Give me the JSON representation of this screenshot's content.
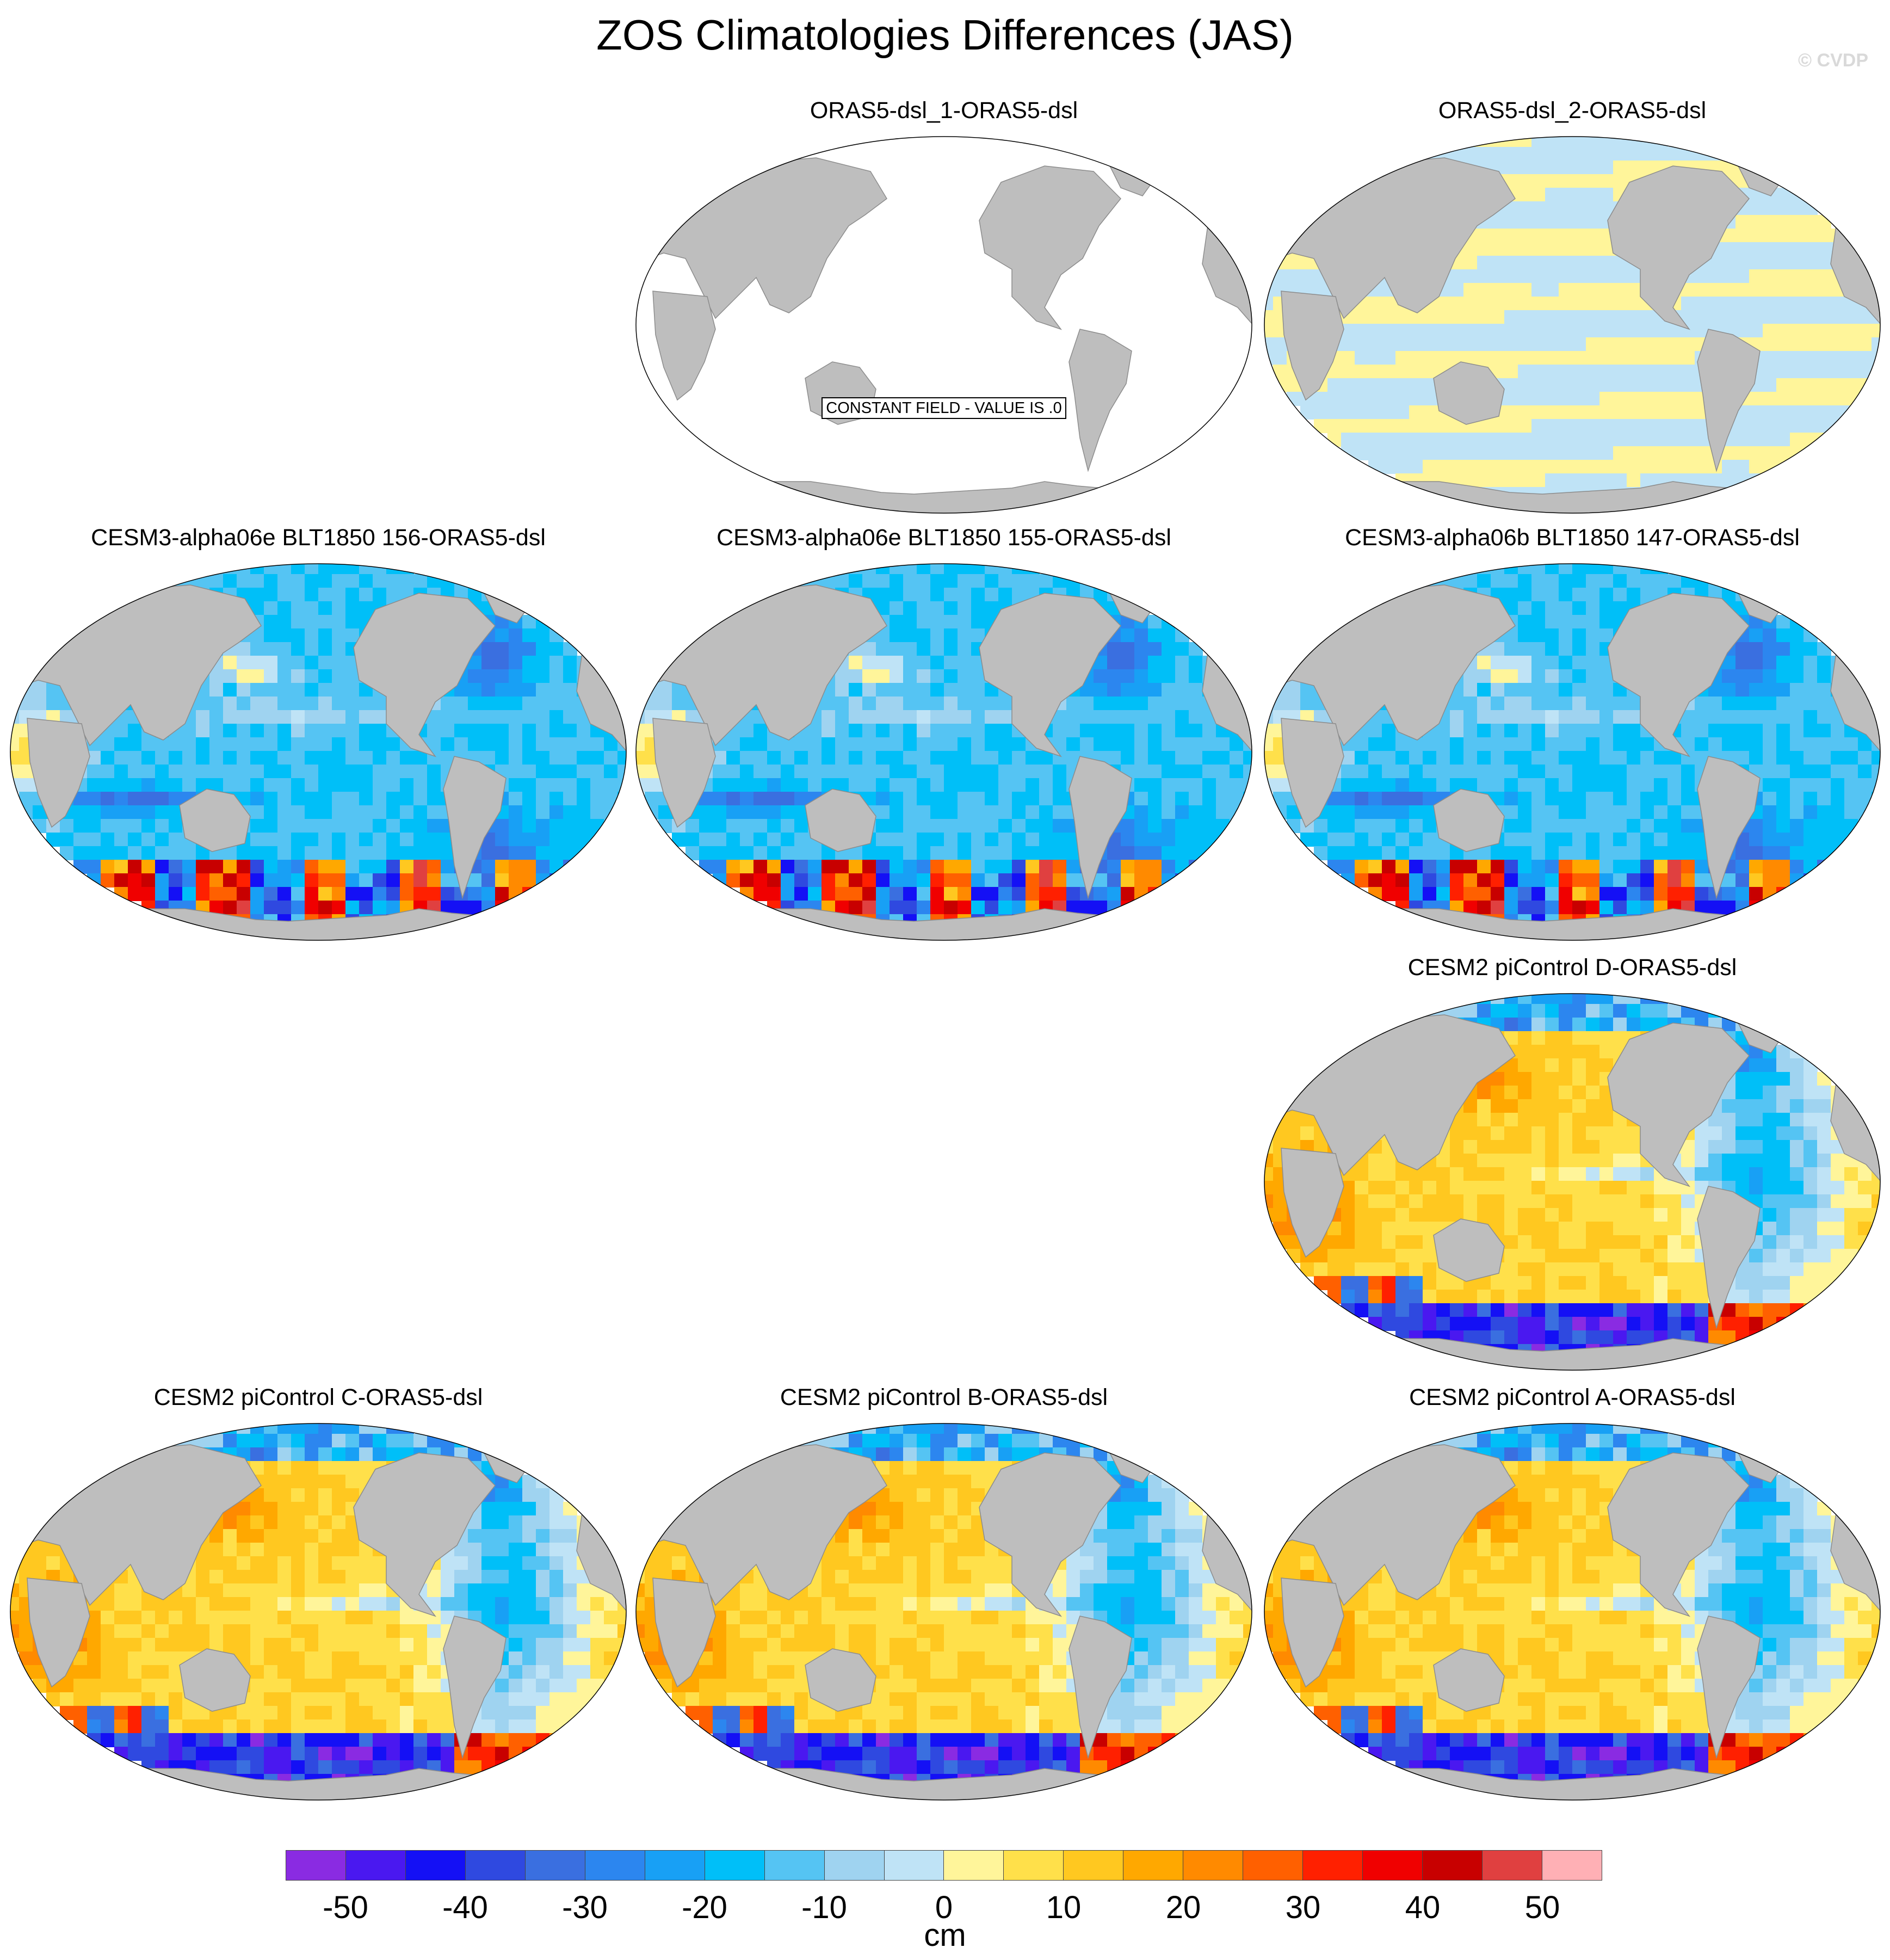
{
  "title": "ZOS Climatologies Differences (JAS)",
  "copyright": "© CVDP",
  "colors": {
    "land": "#bebebe",
    "ocean_blank": "#ffffff"
  },
  "panels": [
    {
      "id": "p1",
      "title": "ORAS5-dsl_1-ORAS5-dsl",
      "pattern": "zero",
      "note": "CONSTANT FIELD - VALUE IS .0"
    },
    {
      "id": "p2",
      "title": "ORAS5-dsl_2-ORAS5-dsl",
      "pattern": "tiny"
    },
    {
      "id": "p3",
      "title": "CESM3-alpha06e BLT1850 156-ORAS5-dsl",
      "pattern": "cesm3"
    },
    {
      "id": "p4",
      "title": "CESM3-alpha06e BLT1850 155-ORAS5-dsl",
      "pattern": "cesm3"
    },
    {
      "id": "p5",
      "title": "CESM3-alpha06b BLT1850 147-ORAS5-dsl",
      "pattern": "cesm3"
    },
    {
      "id": "p6",
      "title": "CESM2 piControl D-ORAS5-dsl",
      "pattern": "cesm2"
    },
    {
      "id": "p7",
      "title": "CESM2 piControl C-ORAS5-dsl",
      "pattern": "cesm2"
    },
    {
      "id": "p8",
      "title": "CESM2 piControl B-ORAS5-dsl",
      "pattern": "cesm2"
    },
    {
      "id": "p9",
      "title": "CESM2 piControl A-ORAS5-dsl",
      "pattern": "cesm2"
    }
  ],
  "colorbar": {
    "units": "cm",
    "levels": [
      -50,
      -45,
      -40,
      -35,
      -30,
      -25,
      -20,
      -15,
      -10,
      -5,
      0,
      5,
      10,
      15,
      20,
      25,
      30,
      35,
      40,
      45,
      50
    ],
    "tick_labels": [
      "-50",
      "-40",
      "-30",
      "-20",
      "-10",
      "0",
      "10",
      "20",
      "30",
      "40",
      "50"
    ],
    "colors": [
      "#8a2be2",
      "#4a18f0",
      "#1410f5",
      "#2f49e0",
      "#3a6fe0",
      "#2c86ef",
      "#18a0f5",
      "#00bff8",
      "#55c4f3",
      "#9fd3f0",
      "#bfe3f6",
      "#fff59a",
      "#ffe04a",
      "#ffc820",
      "#ffa800",
      "#ff8a00",
      "#ff6000",
      "#ff2000",
      "#f00000",
      "#c80000",
      "#e04040",
      "#ffb0b5"
    ]
  }
}
